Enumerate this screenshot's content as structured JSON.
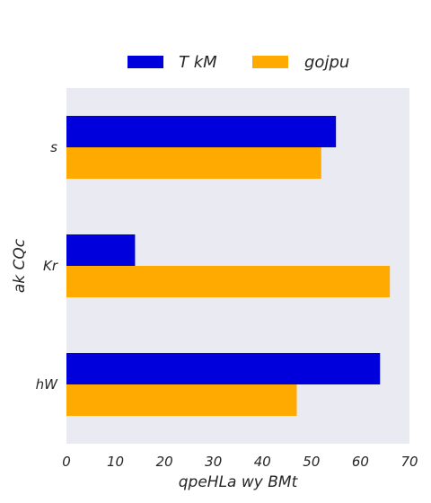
{
  "chart_data": {
    "type": "bar",
    "orientation": "horizontal",
    "title": "",
    "xlabel": "qpeHLa wy BMt",
    "ylabel": "ak CQc",
    "categories": [
      "s",
      "Kr",
      "hW"
    ],
    "series": [
      {
        "name": "T kM",
        "values": [
          55,
          14,
          64
        ],
        "color": "#0000dd"
      },
      {
        "name": "gojpu",
        "values": [
          52,
          66,
          47
        ],
        "color": "#ffaa00"
      }
    ],
    "xlim": [
      0,
      70
    ],
    "xticks": [
      0,
      10,
      20,
      30,
      40,
      50,
      60,
      70
    ],
    "grid": false,
    "legend_position": "top-center",
    "background_color": "#eaeaf2"
  }
}
